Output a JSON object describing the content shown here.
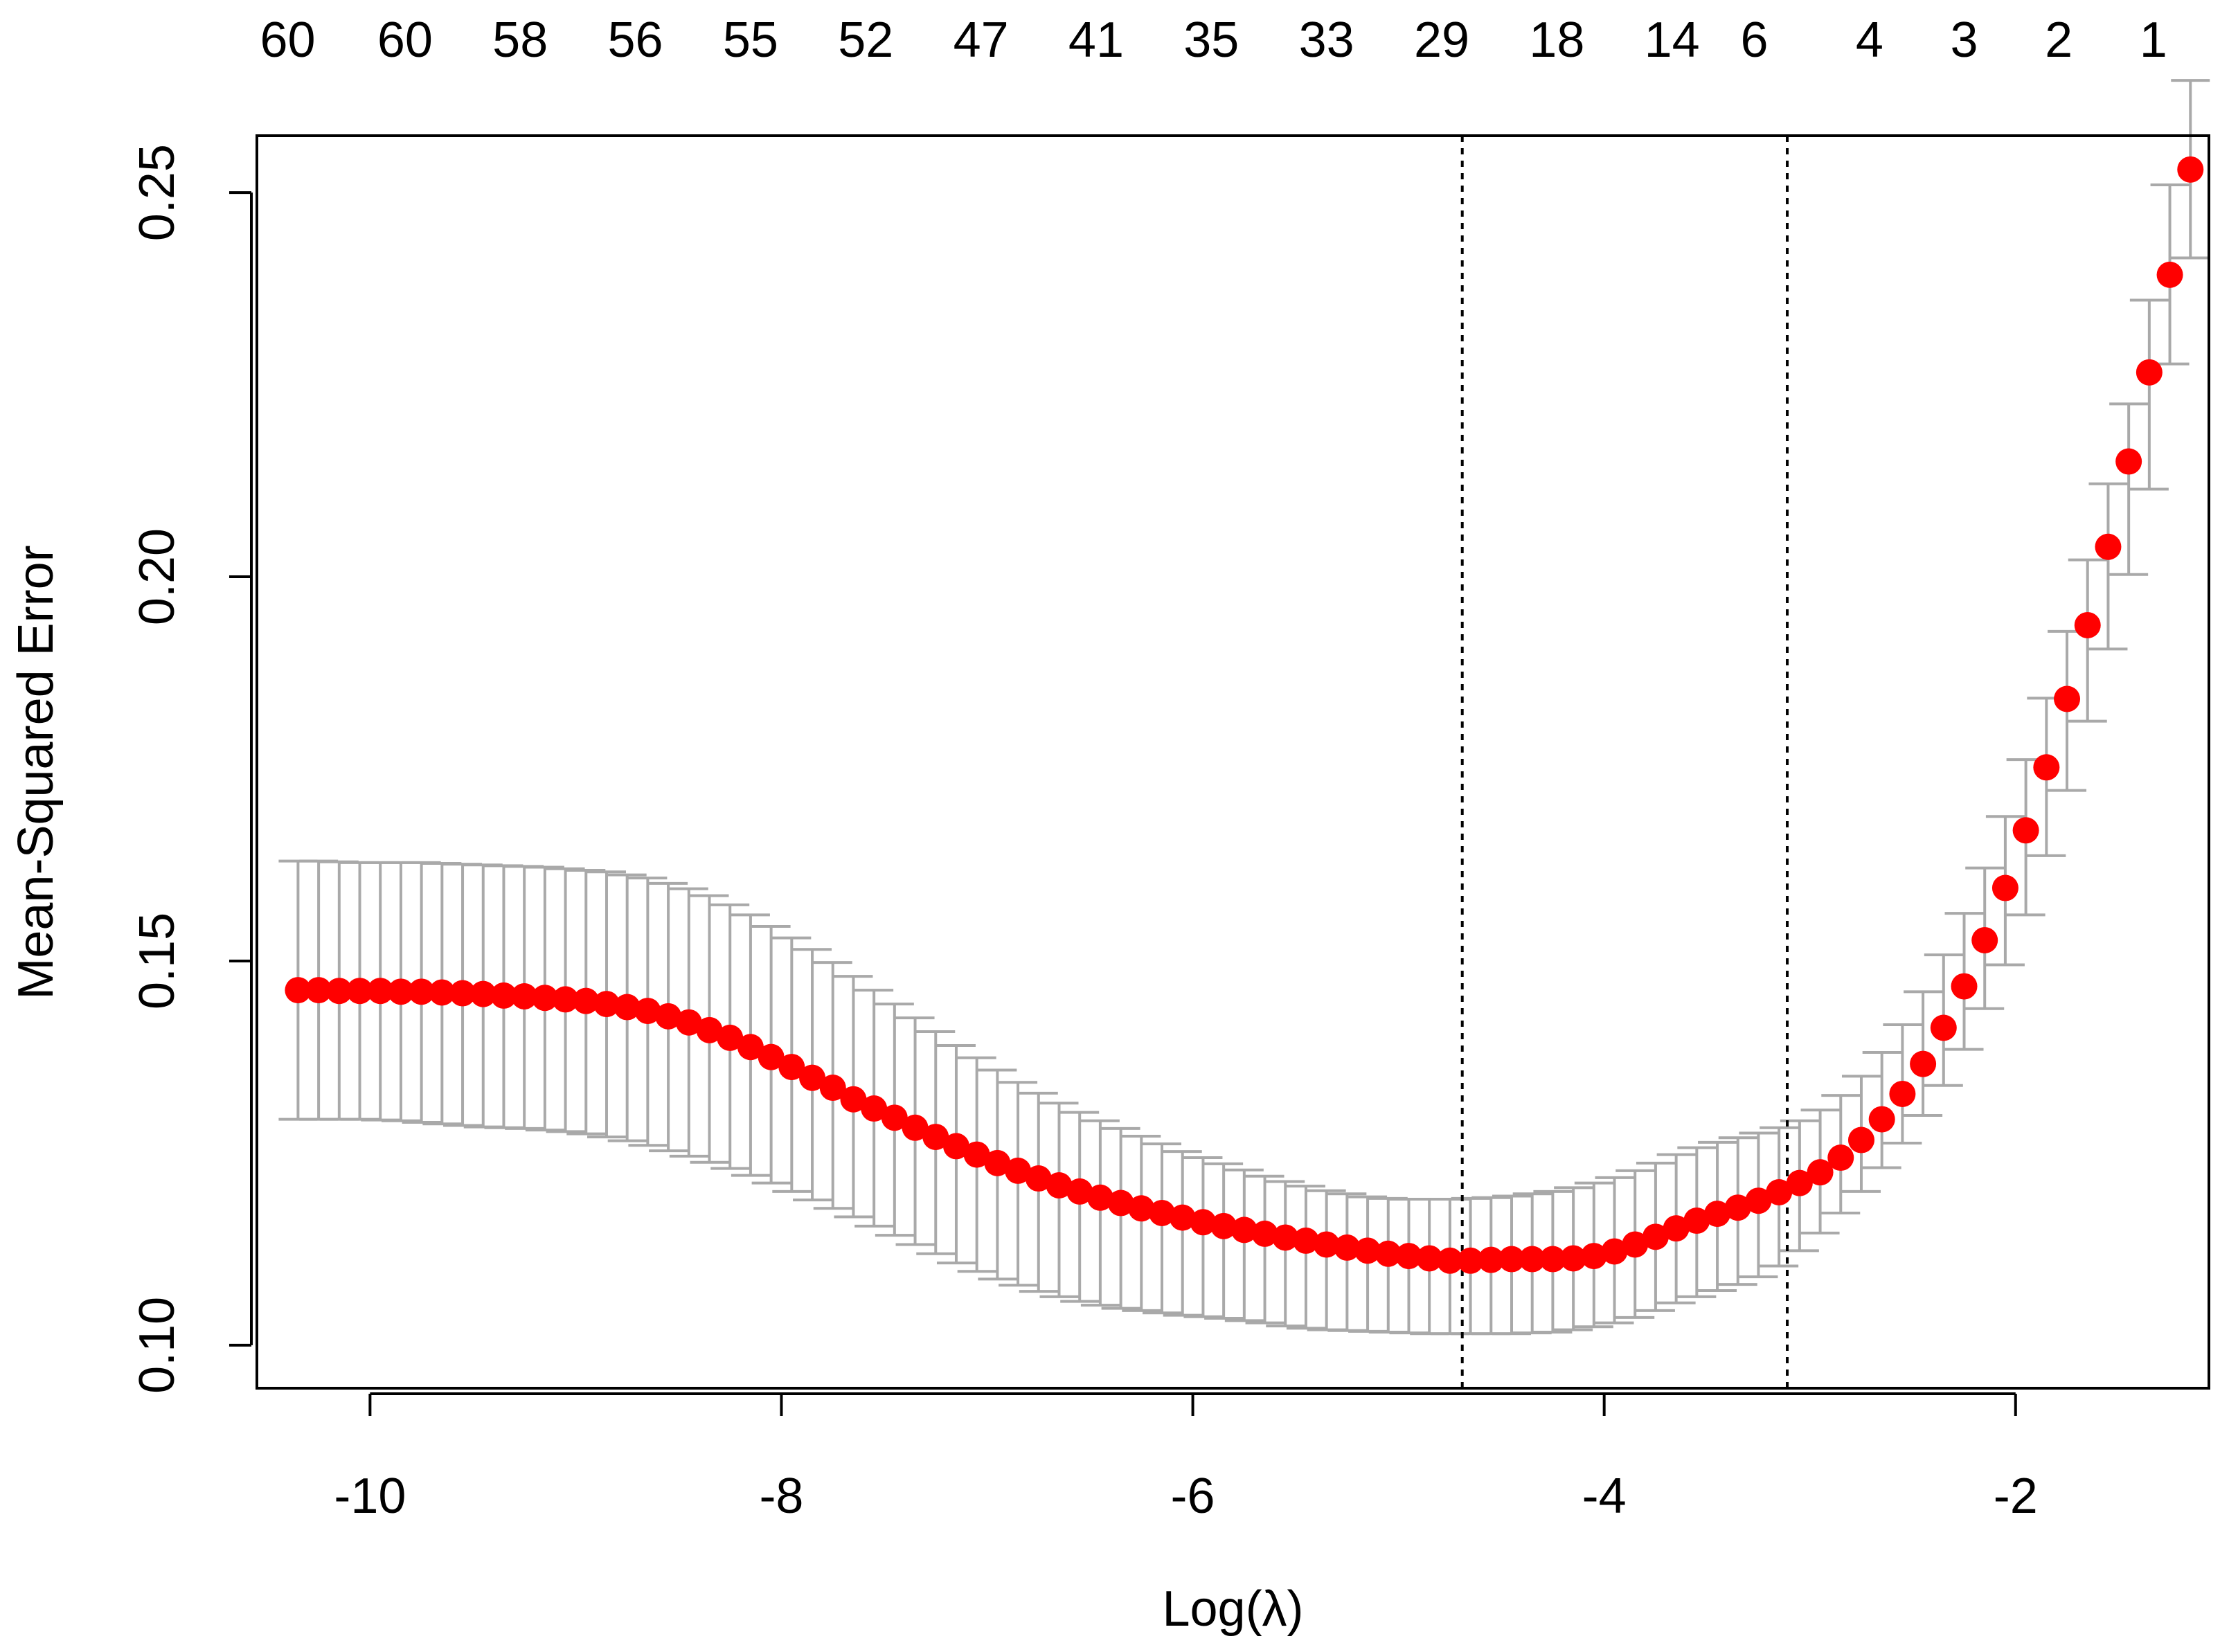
{
  "chart_data": {
    "type": "scatter",
    "title": "",
    "xlabel": "Log(λ)",
    "ylabel": "Mean-Squared Error",
    "xlim": [
      -10.55,
      -1.06
    ],
    "ylim": [
      0.0944,
      0.2574
    ],
    "x_ticks": [
      -10,
      -8,
      -6,
      -4,
      -2
    ],
    "x_tick_labels": [
      "-10",
      "-8",
      "-6",
      "-4",
      "-2"
    ],
    "y_ticks": [
      0.1,
      0.15,
      0.2,
      0.25
    ],
    "y_tick_labels": [
      "0.10",
      "0.15",
      "0.20",
      "0.25"
    ],
    "top_axis": {
      "ticks": [
        -10.4,
        -9.83,
        -9.27,
        -8.71,
        -8.15,
        -7.59,
        -7.03,
        -6.47,
        -5.91,
        -5.35,
        -4.79,
        -4.23,
        -3.67,
        -3.27,
        -2.71,
        -2.25,
        -1.79,
        -1.33
      ],
      "labels": [
        "60",
        "60",
        "58",
        "56",
        "55",
        "52",
        "47",
        "41",
        "35",
        "33",
        "29",
        "18",
        "14",
        "6",
        "4",
        "3",
        "2",
        "1"
      ]
    },
    "vlines": [
      -4.69,
      -3.11
    ],
    "grid": false,
    "colors": {
      "points": "#ff0000",
      "errorbars": "#a9a9a9",
      "vlines": "#000000",
      "frame": "#000000"
    },
    "series": [
      {
        "x": [
          -10.35,
          -10.25,
          -10.15,
          -10.05,
          -9.95,
          -9.85,
          -9.75,
          -9.65,
          -9.55,
          -9.45,
          -9.35,
          -9.25,
          -9.15,
          -9.05,
          -8.95,
          -8.85,
          -8.75,
          -8.65,
          -8.55,
          -8.45,
          -8.35,
          -8.25,
          -8.15,
          -8.05,
          -7.95,
          -7.85,
          -7.75,
          -7.65,
          -7.55,
          -7.45,
          -7.35,
          -7.25,
          -7.15,
          -7.05,
          -6.95,
          -6.85,
          -6.75,
          -6.65,
          -6.55,
          -6.45,
          -6.35,
          -6.25,
          -6.15,
          -6.05,
          -5.95,
          -5.85,
          -5.75,
          -5.65,
          -5.55,
          -5.45,
          -5.35,
          -5.25,
          -5.15,
          -5.05,
          -4.95,
          -4.85,
          -4.75,
          -4.65,
          -4.55,
          -4.45,
          -4.35,
          -4.25,
          -4.15,
          -4.05,
          -3.95,
          -3.85,
          -3.75,
          -3.65,
          -3.55,
          -3.45,
          -3.35,
          -3.25,
          -3.15,
          -3.05,
          -2.95,
          -2.85,
          -2.75,
          -2.65,
          -2.55,
          -2.45,
          -2.35,
          -2.25,
          -2.15,
          -2.05,
          -1.95,
          -1.85,
          -1.75,
          -1.65,
          -1.55,
          -1.45,
          -1.35,
          -1.25,
          -1.15
        ],
        "mse": [
          0.1462,
          0.1462,
          0.1461,
          0.1461,
          0.1461,
          0.146,
          0.146,
          0.1459,
          0.1458,
          0.1457,
          0.1455,
          0.1454,
          0.1452,
          0.145,
          0.1448,
          0.1444,
          0.144,
          0.1435,
          0.1428,
          0.142,
          0.141,
          0.14,
          0.1388,
          0.1375,
          0.1362,
          0.1348,
          0.1335,
          0.132,
          0.1308,
          0.1296,
          0.1283,
          0.1271,
          0.1259,
          0.1248,
          0.1237,
          0.1227,
          0.1217,
          0.1208,
          0.12,
          0.1192,
          0.1185,
          0.1178,
          0.1172,
          0.1166,
          0.116,
          0.1155,
          0.115,
          0.1145,
          0.114,
          0.1136,
          0.1131,
          0.1127,
          0.1123,
          0.1119,
          0.1116,
          0.1113,
          0.111,
          0.111,
          0.1111,
          0.1112,
          0.1112,
          0.1112,
          0.1113,
          0.1116,
          0.1122,
          0.1131,
          0.1141,
          0.1152,
          0.1162,
          0.1171,
          0.1179,
          0.1188,
          0.1199,
          0.1211,
          0.1225,
          0.1244,
          0.1267,
          0.1294,
          0.1327,
          0.1366,
          0.1413,
          0.1467,
          0.1527,
          0.1595,
          0.167,
          0.1752,
          0.1841,
          0.1937,
          0.2039,
          0.215,
          0.2266,
          0.2393,
          0.253
        ],
        "err_low": [
          0.1294,
          0.1294,
          0.1294,
          0.1294,
          0.1293,
          0.1292,
          0.129,
          0.1288,
          0.1286,
          0.1284,
          0.1283,
          0.1282,
          0.128,
          0.1278,
          0.1275,
          0.1271,
          0.1266,
          0.126,
          0.1253,
          0.1246,
          0.1238,
          0.123,
          0.1221,
          0.1211,
          0.12,
          0.1189,
          0.1178,
          0.1167,
          0.1155,
          0.1143,
          0.1131,
          0.1119,
          0.1107,
          0.1096,
          0.1086,
          0.1078,
          0.107,
          0.1063,
          0.1057,
          0.1052,
          0.1048,
          0.1045,
          0.1042,
          0.1039,
          0.1037,
          0.1035,
          0.1032,
          0.1029,
          0.1025,
          0.1022,
          0.102,
          0.1019,
          0.1018,
          0.1017,
          0.1016,
          0.1015,
          0.1015,
          0.1015,
          0.1015,
          0.1015,
          0.1016,
          0.1017,
          0.102,
          0.1024,
          0.1029,
          0.1036,
          0.1045,
          0.1055,
          0.1063,
          0.1071,
          0.1079,
          0.1089,
          0.1103,
          0.1123,
          0.1146,
          0.1172,
          0.12,
          0.1231,
          0.1263,
          0.1299,
          0.1338,
          0.1385,
          0.1438,
          0.1495,
          0.156,
          0.1637,
          0.1722,
          0.1812,
          0.1906,
          0.2003,
          0.2114,
          0.2277,
          0.2415
        ],
        "err_high": [
          0.163,
          0.163,
          0.1629,
          0.1628,
          0.1628,
          0.1628,
          0.1628,
          0.1627,
          0.1626,
          0.1625,
          0.1624,
          0.1623,
          0.1622,
          0.162,
          0.1618,
          0.1616,
          0.1612,
          0.1608,
          0.1601,
          0.1594,
          0.1585,
          0.1573,
          0.156,
          0.1545,
          0.153,
          0.1515,
          0.1498,
          0.148,
          0.1462,
          0.1444,
          0.1426,
          0.1408,
          0.139,
          0.1374,
          0.1358,
          0.1342,
          0.1328,
          0.1315,
          0.1303,
          0.1292,
          0.1282,
          0.1272,
          0.1262,
          0.1252,
          0.1244,
          0.1236,
          0.1228,
          0.122,
          0.1213,
          0.1207,
          0.1201,
          0.1197,
          0.1193,
          0.1191,
          0.119,
          0.119,
          0.119,
          0.1191,
          0.1192,
          0.1194,
          0.1197,
          0.12,
          0.1205,
          0.1211,
          0.1218,
          0.1227,
          0.1237,
          0.1248,
          0.1257,
          0.1264,
          0.127,
          0.1276,
          0.1283,
          0.1292,
          0.1306,
          0.1325,
          0.135,
          0.1381,
          0.1417,
          0.146,
          0.1508,
          0.1562,
          0.1621,
          0.1688,
          0.1762,
          0.1842,
          0.1929,
          0.2022,
          0.2121,
          0.2225,
          0.236,
          0.251,
          0.2646
        ]
      }
    ]
  }
}
